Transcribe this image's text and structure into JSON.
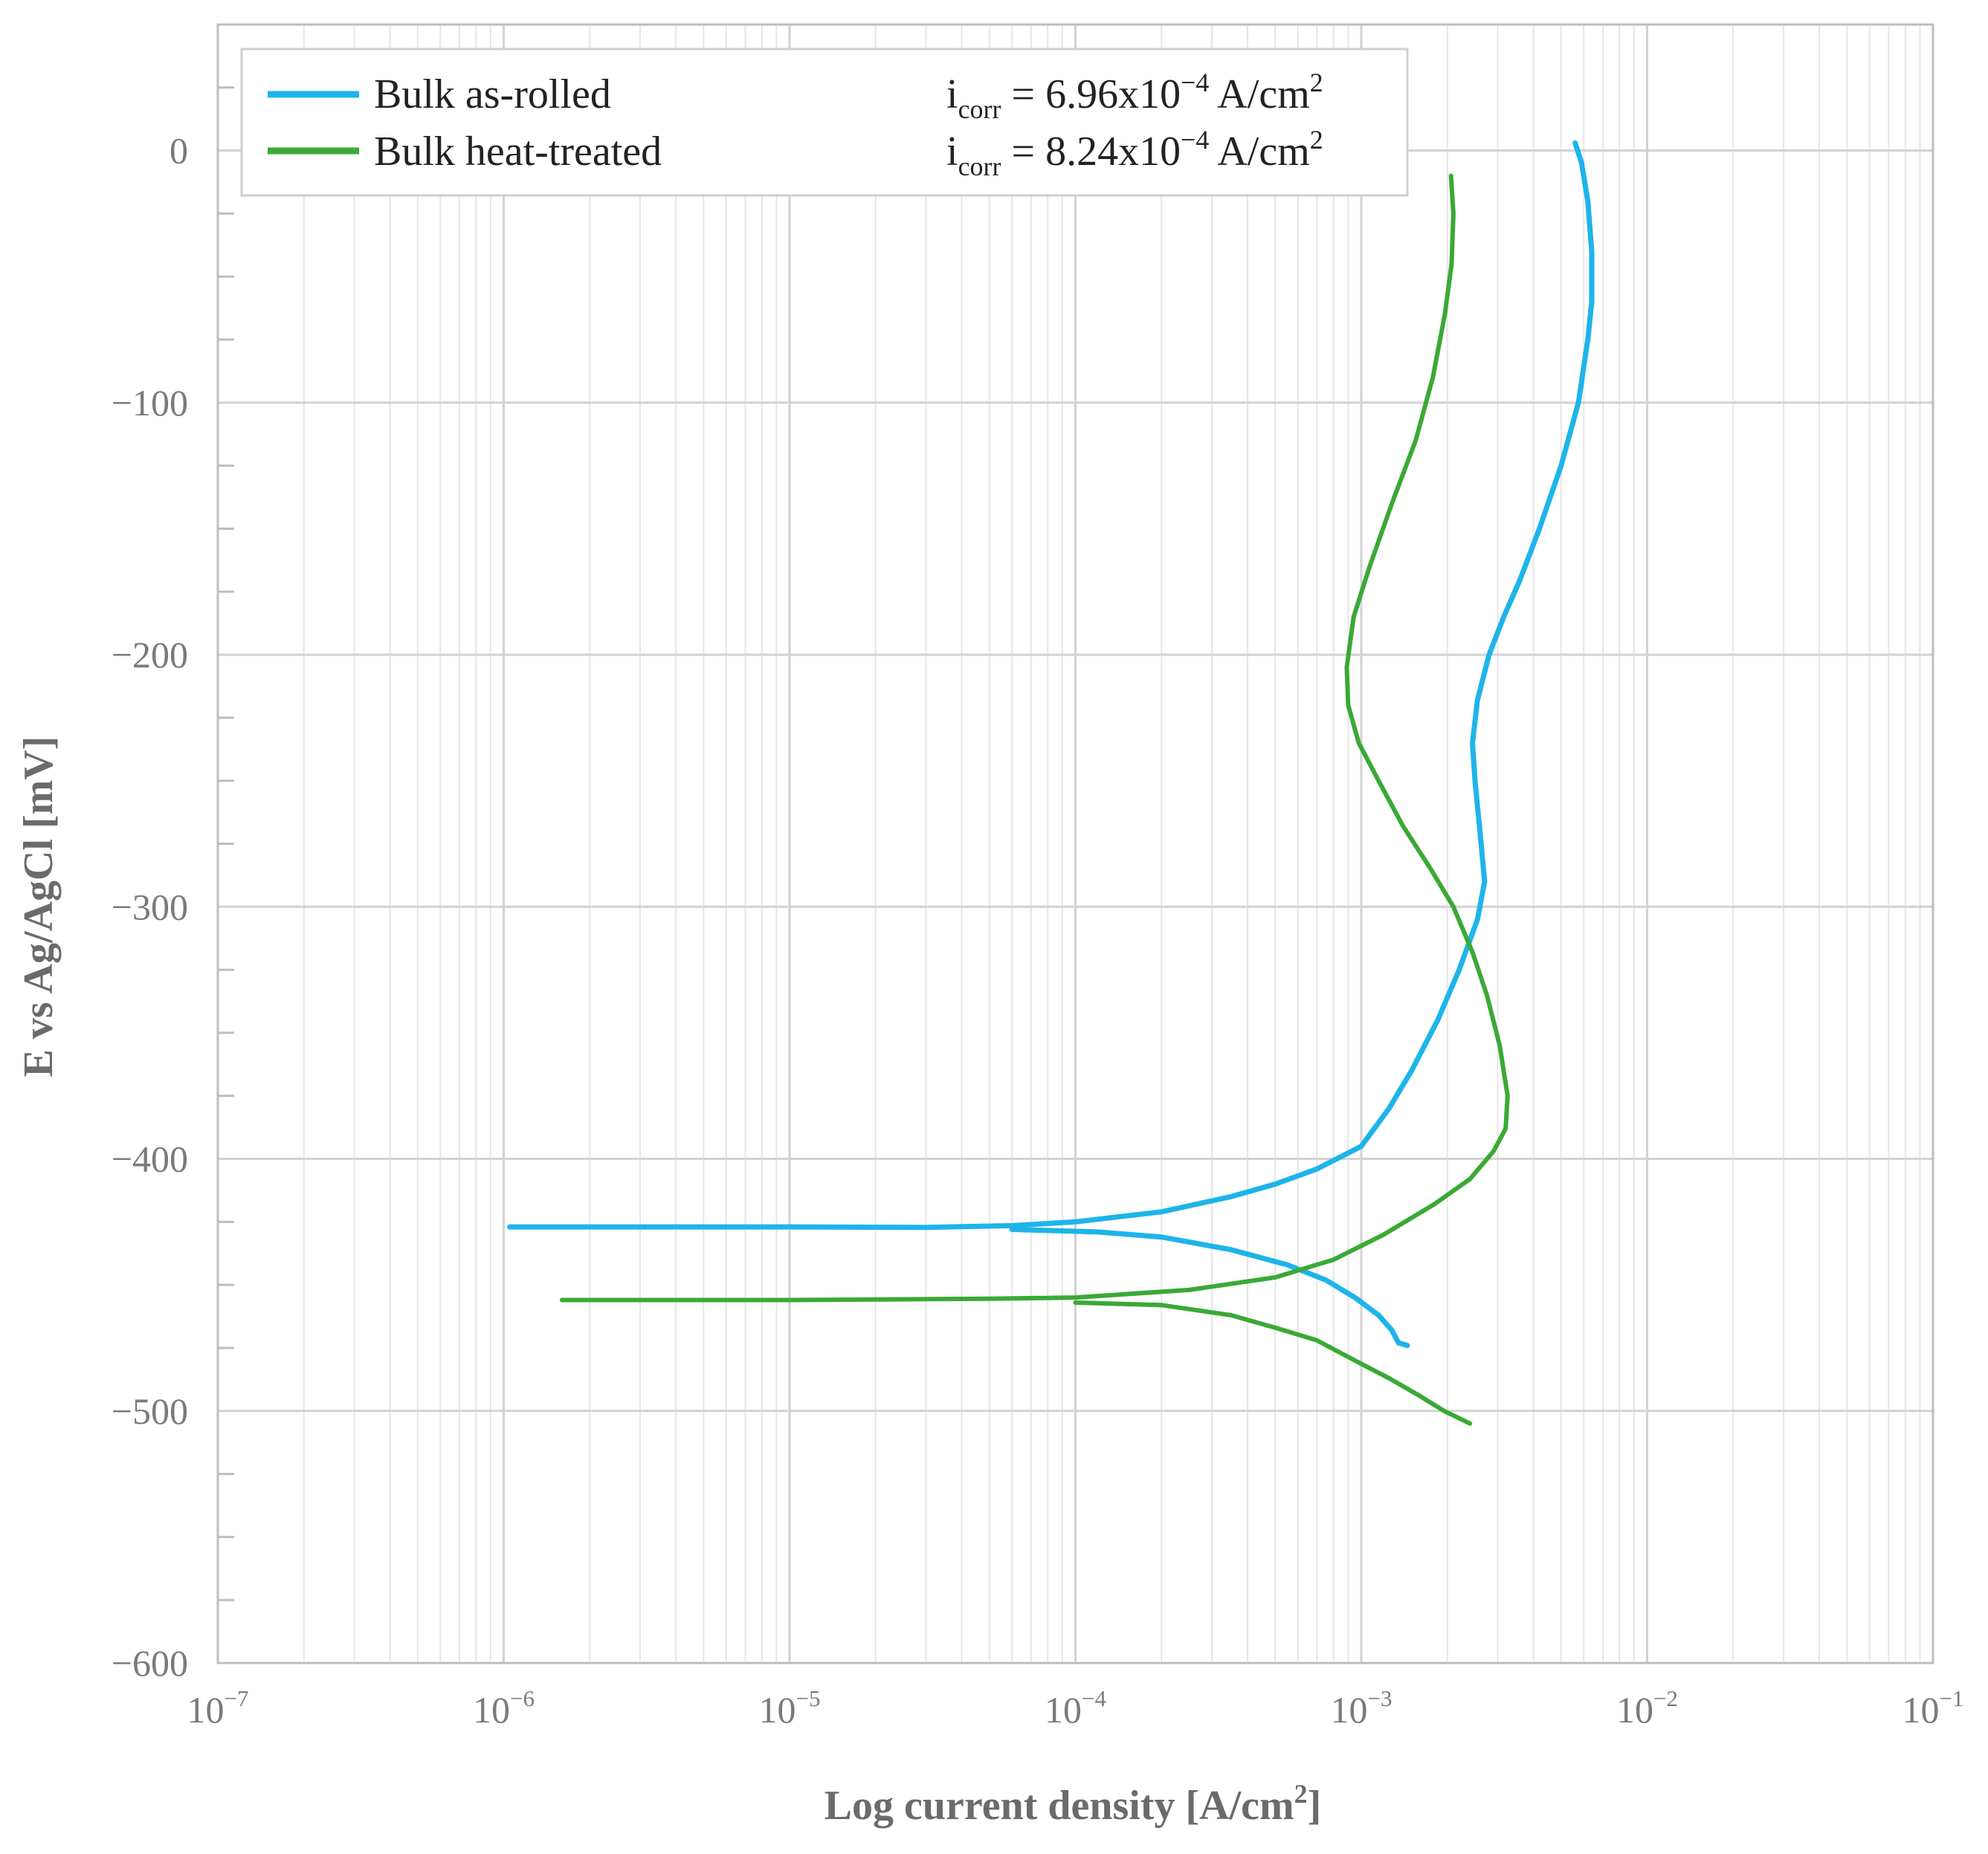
{
  "chart_data": {
    "type": "line",
    "xlabel": "Log current density [A/cm²]",
    "xlabel_main": "Log current density [A/cm",
    "xlabel_sup": "2",
    "xlabel_end": "]",
    "ylabel": "E vs Ag/AgCl [mV]",
    "x_scale": "log",
    "xlim": [
      1e-07,
      0.1
    ],
    "ylim": [
      -600,
      50
    ],
    "grid": true,
    "legend_position": "top-left",
    "x_ticks": [
      {
        "value": 1e-07,
        "base": "10",
        "exp": "−7"
      },
      {
        "value": 1e-06,
        "base": "10",
        "exp": "−6"
      },
      {
        "value": 1e-05,
        "base": "10",
        "exp": "−5"
      },
      {
        "value": 0.0001,
        "base": "10",
        "exp": "−4"
      },
      {
        "value": 0.001,
        "base": "10",
        "exp": "−3"
      },
      {
        "value": 0.01,
        "base": "10",
        "exp": "−2"
      },
      {
        "value": 0.1,
        "base": "10",
        "exp": "−1"
      }
    ],
    "y_ticks": [
      {
        "value": 0,
        "label": "0"
      },
      {
        "value": -100,
        "label": "−100"
      },
      {
        "value": -200,
        "label": "−200"
      },
      {
        "value": -300,
        "label": "−300"
      },
      {
        "value": -400,
        "label": "−400"
      },
      {
        "value": -500,
        "label": "−500"
      },
      {
        "value": -600,
        "label": "−600"
      }
    ],
    "series": [
      {
        "name": "Bulk as-rolled",
        "color": "#1eb4ea",
        "icorr_sym": "i",
        "icorr_sub": "corr",
        "icorr_value": " = 6.96x10",
        "icorr_exp": "−4",
        "icorr_unit": " A/cm",
        "icorr_unit_sup": "2",
        "points": [
          [
            1.05e-06,
            -427
          ],
          [
            1e-05,
            -427
          ],
          [
            3e-05,
            -427.2
          ],
          [
            6e-05,
            -426.5
          ],
          [
            0.0001,
            -425
          ],
          [
            0.0002,
            -421
          ],
          [
            0.00035,
            -415
          ],
          [
            0.0005,
            -410
          ],
          [
            0.0007,
            -404
          ],
          [
            0.001,
            -395
          ],
          [
            0.00125,
            -380
          ],
          [
            0.0015,
            -365
          ],
          [
            0.00185,
            -345
          ],
          [
            0.0022,
            -325
          ],
          [
            0.00255,
            -305
          ],
          [
            0.0027,
            -290
          ],
          [
            0.0026,
            -270
          ],
          [
            0.0025,
            -250
          ],
          [
            0.00245,
            -235
          ],
          [
            0.00255,
            -218
          ],
          [
            0.0028,
            -200
          ],
          [
            0.00315,
            -185
          ],
          [
            0.0036,
            -170
          ],
          [
            0.0042,
            -150
          ],
          [
            0.005,
            -125
          ],
          [
            0.00575,
            -100
          ],
          [
            0.0062,
            -75
          ],
          [
            0.0064,
            -60
          ],
          [
            0.0064,
            -40
          ],
          [
            0.0062,
            -20
          ],
          [
            0.0059,
            -5
          ],
          [
            0.0056,
            3
          ]
        ],
        "points_tail": [
          [
            6e-05,
            -428
          ],
          [
            0.00012,
            -429
          ],
          [
            0.0002,
            -431
          ],
          [
            0.00035,
            -436
          ],
          [
            0.00055,
            -442
          ],
          [
            0.00075,
            -448
          ],
          [
            0.00095,
            -455
          ],
          [
            0.00115,
            -462
          ],
          [
            0.00128,
            -468
          ],
          [
            0.00135,
            -473
          ],
          [
            0.00145,
            -474
          ]
        ]
      },
      {
        "name": "Bulk heat-treated",
        "color": "#3aa935",
        "icorr_sym": "i",
        "icorr_sub": "corr",
        "icorr_value": " = 8.24x10",
        "icorr_exp": "−4",
        "icorr_unit": " A/cm",
        "icorr_unit_sup": "2",
        "points": [
          [
            1.6e-06,
            -456
          ],
          [
            1e-05,
            -456
          ],
          [
            5e-05,
            -455.5
          ],
          [
            0.0001,
            -455
          ],
          [
            0.00025,
            -452
          ],
          [
            0.0005,
            -447
          ],
          [
            0.0008,
            -440
          ],
          [
            0.0012,
            -430
          ],
          [
            0.0018,
            -418
          ],
          [
            0.0024,
            -408
          ],
          [
            0.0029,
            -397
          ],
          [
            0.0032,
            -388
          ],
          [
            0.00325,
            -375
          ],
          [
            0.00305,
            -355
          ],
          [
            0.00275,
            -335
          ],
          [
            0.00245,
            -318
          ],
          [
            0.0021,
            -300
          ],
          [
            0.00175,
            -285
          ],
          [
            0.0014,
            -268
          ],
          [
            0.00115,
            -250
          ],
          [
            0.00098,
            -235
          ],
          [
            0.0009,
            -220
          ],
          [
            0.00089,
            -205
          ],
          [
            0.00094,
            -185
          ],
          [
            0.00107,
            -165
          ],
          [
            0.00128,
            -140
          ],
          [
            0.00155,
            -115
          ],
          [
            0.00178,
            -90
          ],
          [
            0.00196,
            -65
          ],
          [
            0.00207,
            -45
          ],
          [
            0.0021,
            -25
          ],
          [
            0.00206,
            -10
          ]
        ],
        "points_tail": [
          [
            0.0001,
            -457
          ],
          [
            0.0002,
            -458
          ],
          [
            0.00035,
            -462
          ],
          [
            0.0005,
            -467
          ],
          [
            0.0007,
            -472
          ],
          [
            0.00095,
            -480
          ],
          [
            0.00125,
            -487
          ],
          [
            0.0016,
            -494
          ],
          [
            0.00195,
            -500
          ],
          [
            0.0024,
            -505
          ]
        ]
      }
    ]
  }
}
